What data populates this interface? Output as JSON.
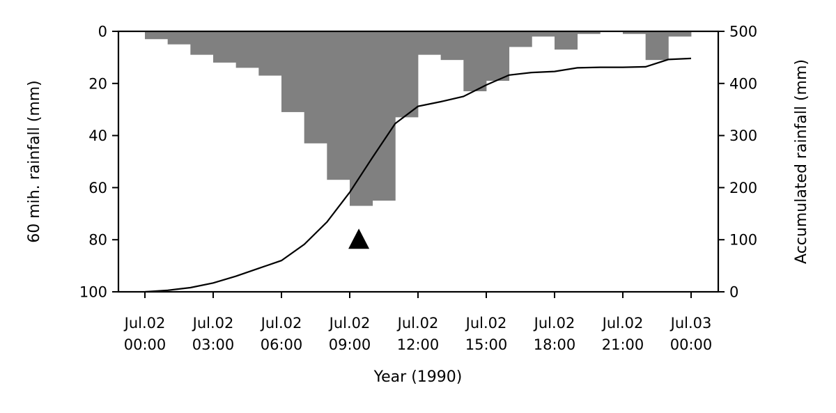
{
  "chart_data": {
    "type": "bar",
    "title": "",
    "xlabel": "Year (1990)",
    "ylabel": "60 mih. rainfall (mm)",
    "ylabel_right": "Accumulated rainfall (mm)",
    "ylim": [
      100,
      0
    ],
    "ylim_right": [
      0,
      500
    ],
    "y_ticks": [
      0,
      20,
      40,
      60,
      80,
      100
    ],
    "y_ticks_right": [
      0,
      100,
      200,
      300,
      400,
      500
    ],
    "x_ticks": [
      {
        "hour": 0,
        "line1": "Jul.02",
        "line2": "00:00"
      },
      {
        "hour": 3,
        "line1": "Jul.02",
        "line2": "03:00"
      },
      {
        "hour": 6,
        "line1": "Jul.02",
        "line2": "06:00"
      },
      {
        "hour": 9,
        "line1": "Jul.02",
        "line2": "09:00"
      },
      {
        "hour": 12,
        "line1": "Jul.02",
        "line2": "12:00"
      },
      {
        "hour": 15,
        "line1": "Jul.02",
        "line2": "15:00"
      },
      {
        "hour": 18,
        "line1": "Jul.02",
        "line2": "18:00"
      },
      {
        "hour": 21,
        "line1": "Jul.02",
        "line2": "21:00"
      },
      {
        "hour": 24,
        "line1": "Jul.03",
        "line2": "00:00"
      }
    ],
    "grid": false,
    "bar_color": "#808080",
    "line_color": "#000000",
    "series": [
      {
        "type": "bar",
        "axis": "left",
        "hour_start": [
          0,
          1,
          2,
          3,
          4,
          5,
          6,
          7,
          8,
          9,
          10,
          11,
          12,
          13,
          14,
          15,
          16,
          17,
          18,
          19,
          20,
          21,
          22,
          23
        ],
        "values": [
          3,
          5,
          9,
          12,
          14,
          17,
          31,
          43,
          57,
          67,
          65,
          33,
          9,
          11,
          23,
          19,
          6,
          2,
          7,
          1,
          0,
          1,
          11,
          2
        ]
      },
      {
        "type": "line",
        "axis": "right",
        "hour": [
          0,
          1,
          2,
          3,
          4,
          5,
          6,
          7,
          8,
          9,
          10,
          11,
          12,
          13,
          14,
          15,
          16,
          17,
          18,
          19,
          20,
          21,
          22,
          23,
          24
        ],
        "values": [
          0,
          3,
          8,
          17,
          30,
          45,
          60,
          91,
          134,
          191,
          258,
          323,
          356,
          365,
          375,
          397,
          416,
          421,
          423,
          430,
          431,
          431,
          432,
          446,
          448
        ]
      }
    ],
    "marker": {
      "shape": "triangle",
      "hour": 9.4,
      "y": 80
    }
  }
}
